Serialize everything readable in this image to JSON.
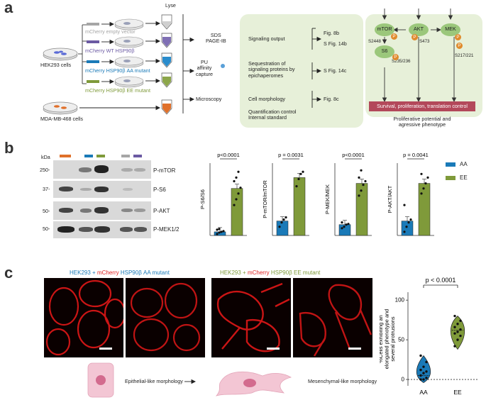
{
  "panels": {
    "a": "a",
    "b": "b",
    "c": "c"
  },
  "colors": {
    "empty": "#a6a6a6",
    "wt": "#6b5aa3",
    "aa": "#1a7ab8",
    "ee": "#7f9a3a",
    "mda": "#e0702a",
    "green_box": "#e7f0d9",
    "signal_bar": "#b3485a",
    "node": "#9bc77b",
    "phospho": "#e08a2c"
  },
  "panel_a": {
    "lyse": "Lyse",
    "hek": "HEK293 cells",
    "mda": "MDA-MB-468 cells",
    "conditions": [
      {
        "prefix": "mCherry",
        "name": "empty vector"
      },
      {
        "prefix": "mCherry",
        "name": "WT HSP90β"
      },
      {
        "prefix": "mCherry",
        "name": "HSP90β AA mutant"
      },
      {
        "prefix": "mCherry",
        "name": "HSP90β EE mutant"
      }
    ],
    "sds": "SDS\nPAGE-IB",
    "pu": "PU\naffinity\ncapture",
    "microscopy": "Microscopy",
    "box_items": [
      {
        "label": "Signaling output",
        "refs": [
          "Fig. 8b",
          "S Fig. 14b"
        ]
      },
      {
        "label": "Sequestration of\nsignaling proteins by\nepichaperomes",
        "refs": [
          "S Fig. 14c"
        ]
      },
      {
        "label": "Cell morphology",
        "refs": [
          "Fig. 8c"
        ]
      },
      {
        "label": "Quantification control\nInternal standard",
        "refs": []
      }
    ],
    "pathway": {
      "nodes": [
        "mTOR",
        "AKT",
        "MEK",
        "S6"
      ],
      "sites": [
        "S2448",
        "S473",
        "S217/221",
        "S235/236"
      ],
      "phospho": "P",
      "outcome": "Survival, proliferation, translation control",
      "caption": "Proliferative potential and\nagressive phenotype"
    }
  },
  "panel_b": {
    "kda": "kDa",
    "markers": [
      "250-",
      "37-",
      "50-",
      "50-"
    ],
    "blot_labels": [
      "P-mTOR",
      "P-S6",
      "P-AKT",
      "P-MEK1/2"
    ],
    "legend": [
      "AA",
      "EE"
    ]
  },
  "chart_data": [
    {
      "type": "bar",
      "categories": [
        "AA",
        "EE"
      ],
      "values": [
        0.05,
        0.65
      ],
      "points": [
        [
          0.02,
          0.04,
          0.05,
          0.06,
          0.08,
          0.09
        ],
        [
          0.42,
          0.5,
          0.58,
          0.66,
          0.75,
          0.8,
          0.88
        ]
      ],
      "ylabel": "P-S6/S6",
      "pvalue": "p<0.0001"
    },
    {
      "type": "bar",
      "categories": [
        "AA",
        "EE"
      ],
      "values": [
        0.2,
        0.8
      ],
      "points": [
        [
          0.12,
          0.18,
          0.22,
          0.25
        ],
        [
          0.68,
          0.78,
          0.85,
          0.88
        ]
      ],
      "ylabel": "P-mTOR/mTOR",
      "pvalue": "p = 0.0031"
    },
    {
      "type": "bar",
      "categories": [
        "AA",
        "EE"
      ],
      "values": [
        0.15,
        0.72
      ],
      "points": [
        [
          0.1,
          0.12,
          0.15,
          0.16,
          0.18
        ],
        [
          0.55,
          0.62,
          0.7,
          0.75,
          0.8,
          0.9
        ]
      ],
      "ylabel": "P-MEK/MEK",
      "pvalue": "p<0.0001"
    },
    {
      "type": "bar",
      "categories": [
        "AA",
        "EE"
      ],
      "values": [
        0.2,
        0.72
      ],
      "points": [
        [
          0.05,
          0.12,
          0.18,
          0.22,
          0.42
        ],
        [
          0.58,
          0.65,
          0.72,
          0.8,
          0.85
        ]
      ],
      "ylabel": "P-AKT/AKT",
      "pvalue": "p = 0.0041"
    },
    {
      "type": "violin",
      "categories": [
        "AA",
        "EE"
      ],
      "points": [
        [
          0,
          0,
          2,
          5,
          8,
          10,
          12,
          16,
          22,
          30
        ],
        [
          42,
          50,
          55,
          58,
          60,
          63,
          66,
          70,
          74,
          80
        ]
      ],
      "medians": [
        5,
        62
      ],
      "ylabel": "%Cells exhibiting an\nelongated phenotype and\nseveral protrusions",
      "yticks": [
        0,
        50,
        100
      ],
      "ylim": [
        -8,
        110
      ],
      "pvalue": "p < 0.0001"
    }
  ],
  "panel_c": {
    "title_aa": {
      "cell": "HEK293",
      "plus": "+",
      "mch": "mCherry",
      "rest": "HSP90β AA mutant"
    },
    "title_ee": {
      "cell": "HEK293",
      "plus": "+",
      "mch": "mCherry",
      "rest": "HSP90β EE mutant"
    },
    "epi": "Epithelial-like morphology",
    "mes": "Mesenchymal-like morphology"
  }
}
